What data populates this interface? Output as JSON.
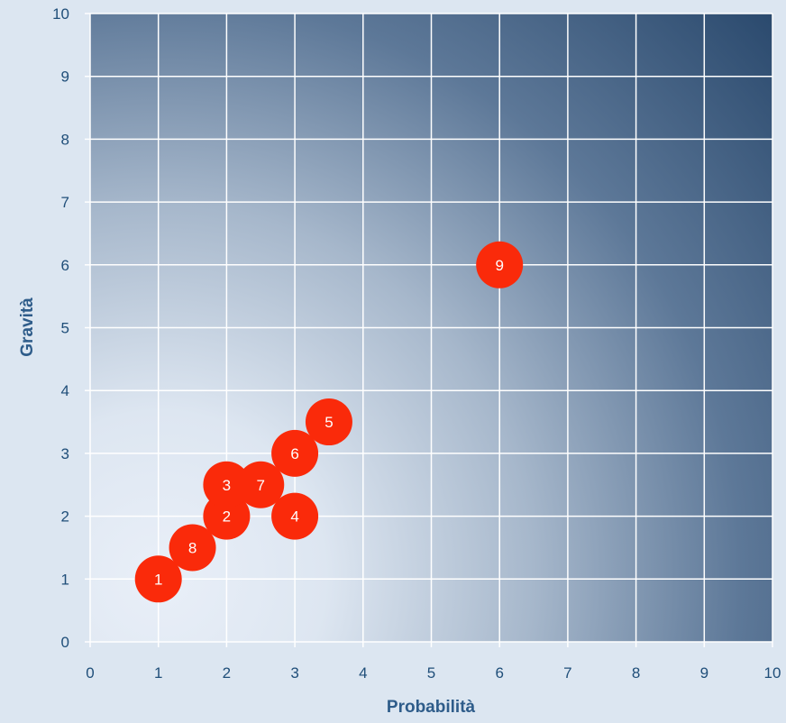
{
  "chart_data": {
    "type": "scatter",
    "xlabel": "Probabilità",
    "ylabel": "Gravità",
    "xlim": [
      0,
      10
    ],
    "ylim": [
      0,
      10
    ],
    "x_ticks": [
      "0",
      "1",
      "2",
      "3",
      "4",
      "5",
      "6",
      "7",
      "8",
      "9",
      "10"
    ],
    "y_ticks": [
      "0",
      "1",
      "2",
      "3",
      "4",
      "5",
      "6",
      "7",
      "8",
      "9",
      "10"
    ],
    "grid": true,
    "points": [
      {
        "label": "1",
        "x": 1,
        "y": 1
      },
      {
        "label": "2",
        "x": 2,
        "y": 2
      },
      {
        "label": "3",
        "x": 2,
        "y": 2.5
      },
      {
        "label": "4",
        "x": 3,
        "y": 2
      },
      {
        "label": "5",
        "x": 3.5,
        "y": 3.5
      },
      {
        "label": "6",
        "x": 3,
        "y": 3
      },
      {
        "label": "7",
        "x": 2.5,
        "y": 2.5
      },
      {
        "label": "8",
        "x": 1.5,
        "y": 1.5
      },
      {
        "label": "9",
        "x": 6,
        "y": 6
      }
    ],
    "colors": {
      "marker": "#fa2a0a",
      "gradient_light": "#e9eff8",
      "gradient_dark": "#2b4a6e",
      "grid": "#ffffff",
      "text": "#1f4e79"
    }
  }
}
